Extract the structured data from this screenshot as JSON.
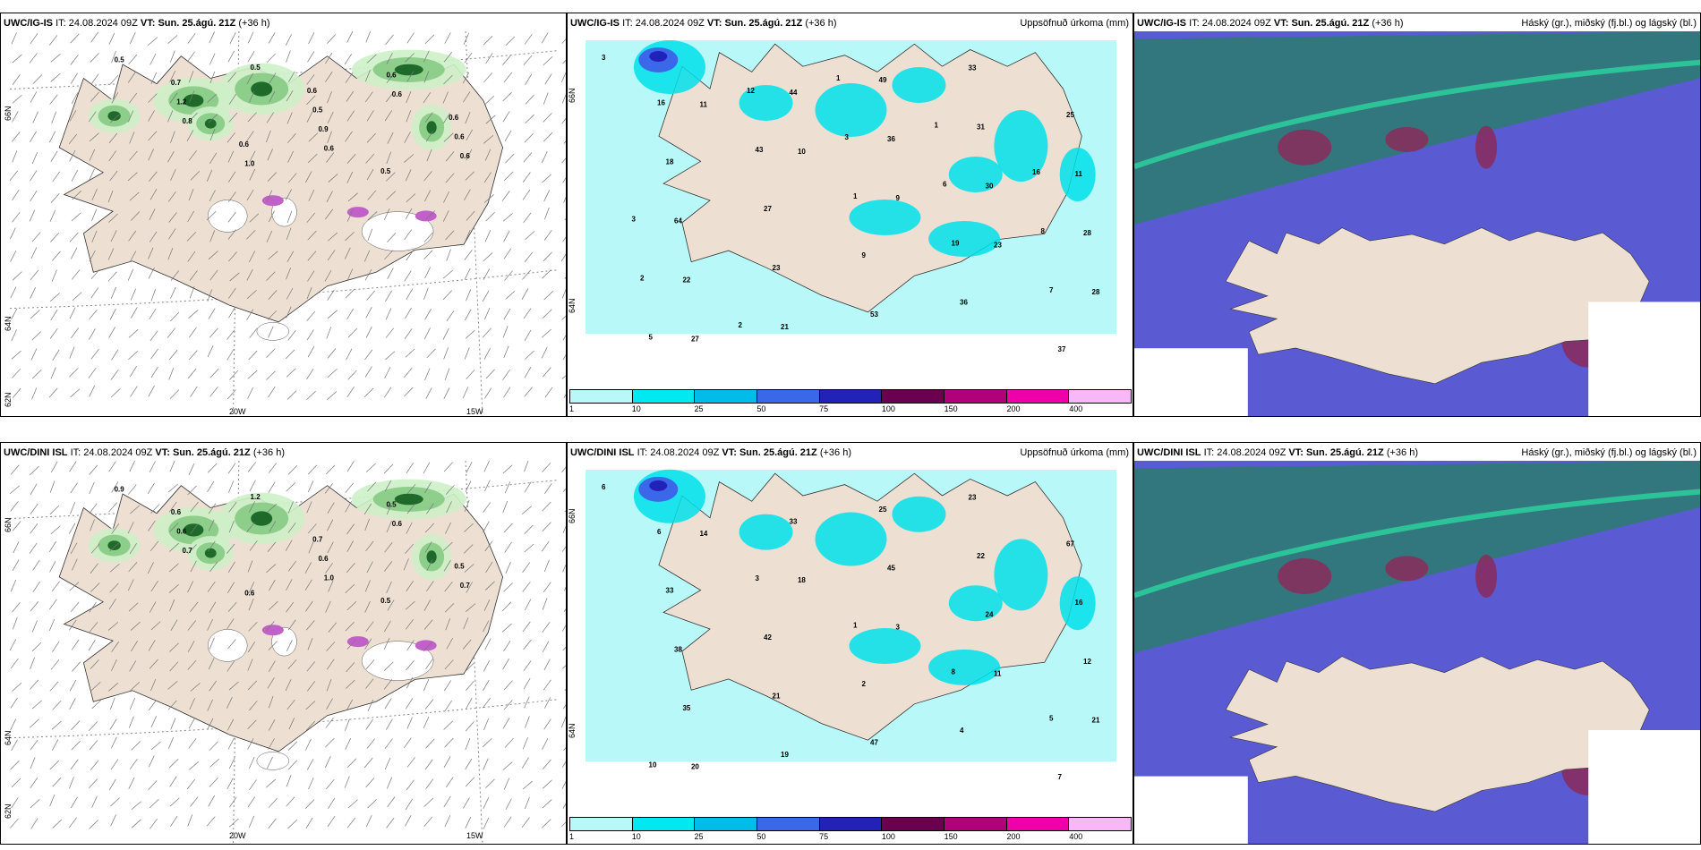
{
  "panels": [
    {
      "model": "UWC/IG-IS",
      "it_label": "IT:",
      "it": "24.08.2024 09Z",
      "vt_label": "VT:",
      "vt": "Sun. 25.ágú. 21Z",
      "lead": "(+36 h)",
      "right_title": ""
    },
    {
      "model": "UWC/IG-IS",
      "it_label": "IT:",
      "it": "24.08.2024 09Z",
      "vt_label": "VT:",
      "vt": "Sun. 25.ágú. 21Z",
      "lead": "(+36 h)",
      "right_title": "Uppsöfnuð úrkoma (mm)"
    },
    {
      "model": "UWC/IG-IS",
      "it_label": "IT:",
      "it": "24.08.2024 09Z",
      "vt_label": "VT:",
      "vt": "Sun. 25.ágú. 21Z",
      "lead": "(+36 h)",
      "right_title": "Háský (gr.), miðský (fj.bl.) og lágský (bl.)"
    },
    {
      "model": "UWC/DINI ISL",
      "it_label": "IT:",
      "it": "24.08.2024 09Z",
      "vt_label": "VT:",
      "vt": "Sun. 25.ágú. 21Z",
      "lead": "(+36 h)",
      "right_title": ""
    },
    {
      "model": "UWC/DINI ISL",
      "it_label": "IT:",
      "it": "24.08.2024 09Z",
      "vt_label": "VT:",
      "vt": "Sun. 25.ágú. 21Z",
      "lead": "(+36 h)",
      "right_title": "Uppsöfnuð úrkoma (mm)"
    },
    {
      "model": "UWC/DINI ISL",
      "it_label": "IT:",
      "it": "24.08.2024 09Z",
      "vt_label": "VT:",
      "vt": "Sun. 25.ágú. 21Z",
      "lead": "(+36 h)",
      "right_title": "Háský (gr.), miðský (fj.bl.) og lágský (bl.)"
    }
  ],
  "axis_labels": {
    "lat_66": "66N",
    "lat_64": "64N",
    "lat_62": "62N",
    "lon_20": "20W",
    "lon_15": "15W"
  },
  "colorbar": {
    "labels": [
      "1",
      "10",
      "25",
      "50",
      "75",
      "100",
      "150",
      "200",
      "400"
    ],
    "colors": [
      "#b8f8f8",
      "#00e8f0",
      "#00bce8",
      "#3a68e8",
      "#2222b8",
      "#6a0050",
      "#b0007a",
      "#f000a8",
      "#f8b8f8"
    ]
  },
  "wind_gust_values_top": [
    "0.5",
    "0.6",
    "0.8",
    "0.6",
    "0.5",
    "0.6",
    "0.9",
    "1.2",
    "0.6",
    "1.0",
    "0.6",
    "0.5",
    "0.7",
    "0.5",
    "0.6",
    "0.6",
    "0.6"
  ],
  "wind_gust_values_bottom": [
    "0.9",
    "1.0",
    "0.7",
    "0.6",
    "1.2",
    "0.7",
    "0.6",
    "0.6",
    "0.5",
    "0.6",
    "0.5",
    "0.7",
    "0.6",
    "0.5"
  ],
  "precip_values_top": [
    "3",
    "11",
    "10",
    "9",
    "23",
    "28",
    "27",
    "44",
    "36",
    "30",
    "28",
    "22",
    "21",
    "49",
    "31",
    "11",
    "64",
    "23",
    "53",
    "33",
    "25",
    "18",
    "27",
    "9",
    "36",
    "37",
    "16",
    "43",
    "1",
    "19",
    "7",
    "5",
    "12",
    "3",
    "6",
    "8",
    "2",
    "2",
    "1",
    "1",
    "16",
    "3"
  ],
  "precip_values_bottom": [
    "6",
    "14",
    "18",
    "3",
    "11",
    "21",
    "20",
    "33",
    "45",
    "24",
    "12",
    "35",
    "19",
    "25",
    "22",
    "16",
    "38",
    "21",
    "47",
    "23",
    "67",
    "33",
    "42",
    "2",
    "4",
    "7",
    "6",
    "3",
    "1",
    "8",
    "5",
    "10"
  ],
  "colors": {
    "land": "#ede0d3",
    "ocean": "#ffffff",
    "cloud_low": "#5a5ad2",
    "cloud_mid": "#8a2a5a",
    "cloud_high": "#2d7d70"
  }
}
